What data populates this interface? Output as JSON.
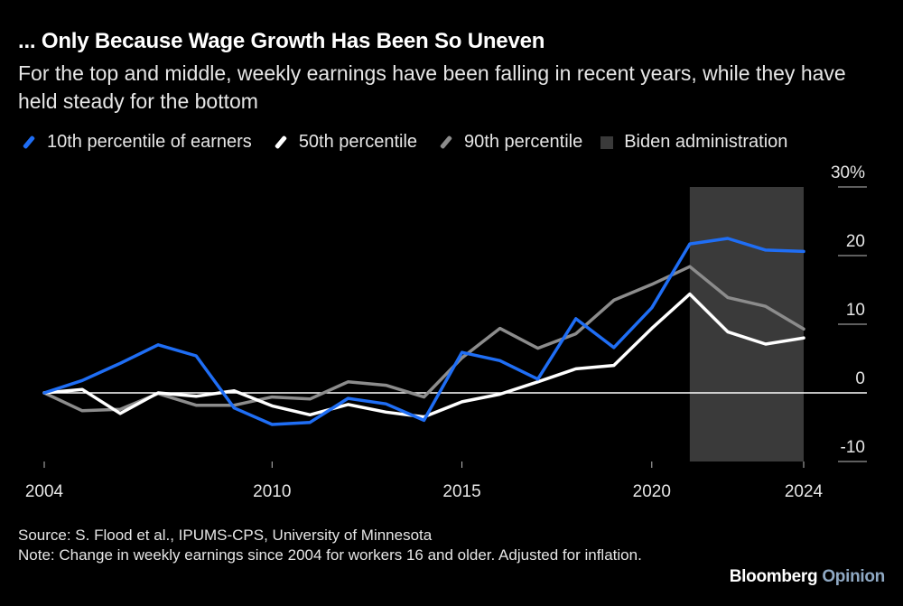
{
  "header": {
    "title": "... Only Because Wage Growth Has Been So Uneven",
    "subtitle": "For the top and middle, weekly earnings have been falling in recent years, while they have held steady for the bottom"
  },
  "legend": [
    {
      "label": "10th percentile of earners",
      "color": "#1f6ef5"
    },
    {
      "label": "50th percentile",
      "color": "#ffffff"
    },
    {
      "label": "90th percentile",
      "color": "#8c8c8c"
    },
    {
      "label": "Biden administration",
      "color": "#3a3a3a"
    }
  ],
  "chart_data": {
    "type": "line",
    "title": "... Only Because Wage Growth Has Been So Uneven",
    "xlabel": "",
    "ylabel": "",
    "x": [
      2004,
      2005,
      2006,
      2007,
      2008,
      2009,
      2010,
      2011,
      2012,
      2013,
      2014,
      2015,
      2016,
      2017,
      2018,
      2019,
      2020,
      2021,
      2022,
      2023,
      2024
    ],
    "xticks": [
      "2004",
      "2010",
      "2015",
      "2020",
      "2024"
    ],
    "ylim": [
      -10,
      30
    ],
    "yticks": [
      "30%",
      "20",
      "10",
      "0",
      "-10"
    ],
    "shaded_region": {
      "label": "Biden administration",
      "from": 2021,
      "to": 2024
    },
    "series": [
      {
        "name": "10th percentile of earners",
        "color": "#1f6ef5",
        "values": [
          0,
          1.8,
          4.3,
          7,
          5.4,
          -2.2,
          -4.6,
          -4.3,
          -0.8,
          -1.6,
          -4,
          5.9,
          4.7,
          2,
          10.8,
          6.6,
          12.4,
          21.7,
          22.5,
          20.8,
          20.6
        ]
      },
      {
        "name": "50th percentile",
        "color": "#ffffff",
        "values": [
          0,
          0.5,
          -3,
          0,
          -0.5,
          0.3,
          -1.9,
          -3.2,
          -1.7,
          -2.8,
          -3.5,
          -1.3,
          -0.2,
          1.6,
          3.5,
          4,
          9.4,
          14.4,
          8.9,
          7.1,
          8
        ]
      },
      {
        "name": "90th percentile",
        "color": "#8c8c8c",
        "values": [
          0,
          -2.6,
          -2.4,
          -0.1,
          -1.8,
          -1.8,
          -0.6,
          -0.9,
          1.6,
          1.1,
          -0.6,
          5.1,
          9.4,
          6.5,
          8.6,
          13.5,
          15.8,
          18.4,
          13.9,
          12.6,
          9.3
        ]
      }
    ]
  },
  "footer": {
    "source": "Source: S. Flood et al., IPUMS-CPS, University of Minnesota",
    "note": "Note: Change in weekly earnings since 2004 for workers 16 and older. Adjusted for inflation."
  },
  "brand": {
    "name": "Bloomberg",
    "suffix": "Opinion"
  }
}
